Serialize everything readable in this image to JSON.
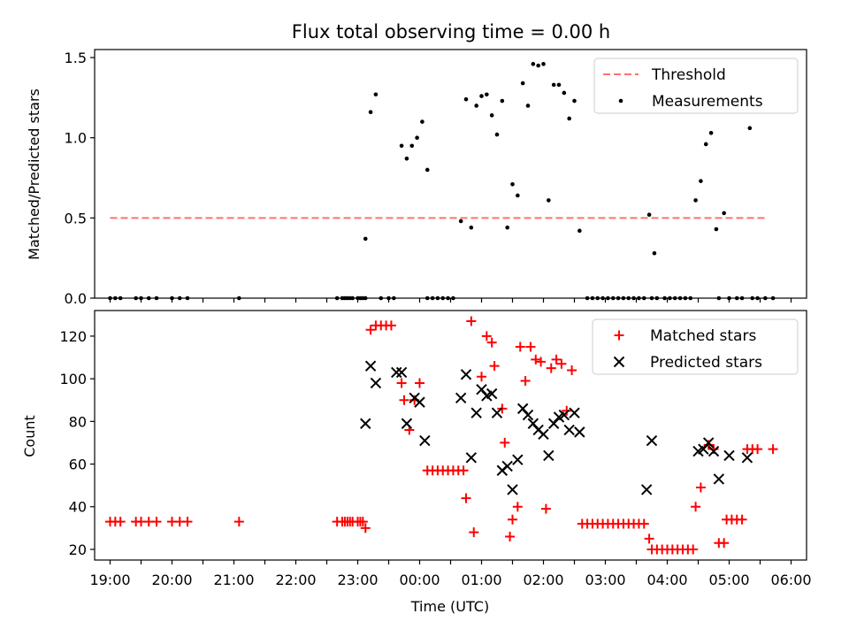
{
  "figure": {
    "title": "Flux total observing time = 0.00 h"
  },
  "chart_data": [
    {
      "type": "scatter",
      "panel": "top",
      "ylabel": "Matched/Predicted stars",
      "xlabel": "",
      "xlim_minutes": [
        -30,
        1350
      ],
      "ylim": [
        0,
        1.55
      ],
      "yticks": [
        0.0,
        0.5,
        1.0,
        1.5
      ],
      "ytick_labels": [
        "0.0",
        "0.5",
        "1.0",
        "1.5"
      ],
      "legend_position": "top-right",
      "threshold": {
        "name": "Threshold",
        "y": 0.5,
        "x_start_minutes": 0,
        "x_end_minutes": 1275,
        "color": "#ff7070"
      },
      "series": [
        {
          "name": "Measurements",
          "color": "#000000",
          "points": [
            [
              0,
              0
            ],
            [
              10,
              0
            ],
            [
              20,
              0
            ],
            [
              50,
              0
            ],
            [
              60,
              0
            ],
            [
              75,
              0
            ],
            [
              90,
              0
            ],
            [
              120,
              0
            ],
            [
              135,
              0
            ],
            [
              150,
              0
            ],
            [
              250,
              0
            ],
            [
              440,
              0
            ],
            [
              450,
              0
            ],
            [
              455,
              0
            ],
            [
              460,
              0
            ],
            [
              465,
              0
            ],
            [
              470,
              0
            ],
            [
              480,
              0
            ],
            [
              485,
              0
            ],
            [
              490,
              0
            ],
            [
              495,
              0
            ],
            [
              495,
              0.37
            ],
            [
              505,
              1.16
            ],
            [
              515,
              1.27
            ],
            [
              525,
              0
            ],
            [
              540,
              0
            ],
            [
              550,
              0
            ],
            [
              565,
              0.95
            ],
            [
              575,
              0.87
            ],
            [
              585,
              0.95
            ],
            [
              595,
              1.0
            ],
            [
              605,
              1.1
            ],
            [
              615,
              0.8
            ],
            [
              615,
              0
            ],
            [
              625,
              0
            ],
            [
              635,
              0
            ],
            [
              645,
              0
            ],
            [
              655,
              0
            ],
            [
              665,
              0
            ],
            [
              680,
              0.48
            ],
            [
              690,
              1.24
            ],
            [
              700,
              0.44
            ],
            [
              710,
              1.2
            ],
            [
              720,
              1.26
            ],
            [
              730,
              1.27
            ],
            [
              740,
              1.14
            ],
            [
              750,
              1.02
            ],
            [
              760,
              1.23
            ],
            [
              770,
              0.44
            ],
            [
              780,
              0.71
            ],
            [
              790,
              0.64
            ],
            [
              800,
              1.34
            ],
            [
              810,
              1.2
            ],
            [
              820,
              1.46
            ],
            [
              830,
              1.45
            ],
            [
              840,
              1.46
            ],
            [
              850,
              0.61
            ],
            [
              860,
              1.33
            ],
            [
              870,
              1.33
            ],
            [
              880,
              1.28
            ],
            [
              890,
              1.12
            ],
            [
              900,
              1.23
            ],
            [
              910,
              0.42
            ],
            [
              925,
              0
            ],
            [
              935,
              0
            ],
            [
              945,
              0
            ],
            [
              955,
              0
            ],
            [
              965,
              0
            ],
            [
              975,
              0
            ],
            [
              985,
              0
            ],
            [
              995,
              0
            ],
            [
              1005,
              0
            ],
            [
              1015,
              0
            ],
            [
              1025,
              0
            ],
            [
              1035,
              0
            ],
            [
              1045,
              0.52
            ],
            [
              1050,
              0
            ],
            [
              1055,
              0.28
            ],
            [
              1060,
              0
            ],
            [
              1075,
              0
            ],
            [
              1085,
              0
            ],
            [
              1095,
              0
            ],
            [
              1105,
              0
            ],
            [
              1115,
              0
            ],
            [
              1125,
              0
            ],
            [
              1135,
              0.61
            ],
            [
              1145,
              0.73
            ],
            [
              1155,
              0.96
            ],
            [
              1165,
              1.03
            ],
            [
              1175,
              0.43
            ],
            [
              1180,
              0
            ],
            [
              1190,
              0.53
            ],
            [
              1200,
              0
            ],
            [
              1215,
              0
            ],
            [
              1225,
              0
            ],
            [
              1240,
              1.06
            ],
            [
              1245,
              0
            ],
            [
              1255,
              0
            ],
            [
              1270,
              0
            ],
            [
              1285,
              0
            ]
          ]
        }
      ]
    },
    {
      "type": "scatter",
      "panel": "bottom",
      "ylabel": "Count",
      "xlabel": "Time (UTC)",
      "xlim_minutes": [
        -30,
        1350
      ],
      "ylim": [
        15,
        132
      ],
      "yticks": [
        20,
        40,
        60,
        80,
        100,
        120
      ],
      "ytick_labels": [
        "20",
        "40",
        "60",
        "80",
        "100",
        "120"
      ],
      "xticks_minutes": [
        0,
        60,
        120,
        180,
        240,
        300,
        360,
        420,
        480,
        540,
        600,
        660,
        720,
        780,
        840,
        900,
        960,
        1020,
        1080,
        1140,
        1200,
        1260,
        1320
      ],
      "xtick_labels": [
        "19:00",
        "20:00",
        "21:00",
        "22:00",
        "23:00",
        "00:00",
        "01:00",
        "02:00",
        "03:00",
        "04:00",
        "05:00",
        "06:00"
      ],
      "xtick_label_every": 2,
      "legend_position": "top-right",
      "series": [
        {
          "name": "Matched stars",
          "marker": "plus",
          "color": "#ff0000",
          "points": [
            [
              0,
              33
            ],
            [
              10,
              33
            ],
            [
              20,
              33
            ],
            [
              50,
              33
            ],
            [
              60,
              33
            ],
            [
              75,
              33
            ],
            [
              90,
              33
            ],
            [
              120,
              33
            ],
            [
              135,
              33
            ],
            [
              150,
              33
            ],
            [
              250,
              33
            ],
            [
              440,
              33
            ],
            [
              450,
              33
            ],
            [
              455,
              33
            ],
            [
              460,
              33
            ],
            [
              465,
              33
            ],
            [
              470,
              33
            ],
            [
              480,
              33
            ],
            [
              485,
              33
            ],
            [
              490,
              33
            ],
            [
              495,
              30
            ],
            [
              505,
              123
            ],
            [
              515,
              125
            ],
            [
              525,
              125
            ],
            [
              535,
              125
            ],
            [
              545,
              125
            ],
            [
              565,
              98
            ],
            [
              570,
              90
            ],
            [
              580,
              76
            ],
            [
              590,
              90
            ],
            [
              600,
              98
            ],
            [
              615,
              57
            ],
            [
              625,
              57
            ],
            [
              635,
              57
            ],
            [
              645,
              57
            ],
            [
              655,
              57
            ],
            [
              665,
              57
            ],
            [
              675,
              57
            ],
            [
              685,
              57
            ],
            [
              690,
              44
            ],
            [
              700,
              127
            ],
            [
              705,
              28
            ],
            [
              720,
              101
            ],
            [
              730,
              120
            ],
            [
              740,
              117
            ],
            [
              745,
              106
            ],
            [
              760,
              86
            ],
            [
              765,
              70
            ],
            [
              775,
              26
            ],
            [
              780,
              34
            ],
            [
              790,
              40
            ],
            [
              795,
              115
            ],
            [
              805,
              99
            ],
            [
              815,
              115
            ],
            [
              825,
              109
            ],
            [
              835,
              108
            ],
            [
              845,
              39
            ],
            [
              855,
              105
            ],
            [
              865,
              109
            ],
            [
              875,
              107
            ],
            [
              885,
              85
            ],
            [
              895,
              104
            ],
            [
              915,
              32
            ],
            [
              925,
              32
            ],
            [
              935,
              32
            ],
            [
              945,
              32
            ],
            [
              955,
              32
            ],
            [
              965,
              32
            ],
            [
              975,
              32
            ],
            [
              985,
              32
            ],
            [
              995,
              32
            ],
            [
              1005,
              32
            ],
            [
              1015,
              32
            ],
            [
              1025,
              32
            ],
            [
              1035,
              32
            ],
            [
              1045,
              25
            ],
            [
              1050,
              20
            ],
            [
              1060,
              20
            ],
            [
              1070,
              20
            ],
            [
              1080,
              20
            ],
            [
              1090,
              20
            ],
            [
              1100,
              20
            ],
            [
              1110,
              20
            ],
            [
              1120,
              20
            ],
            [
              1130,
              20
            ],
            [
              1135,
              40
            ],
            [
              1145,
              49
            ],
            [
              1160,
              69
            ],
            [
              1170,
              67
            ],
            [
              1180,
              23
            ],
            [
              1190,
              23
            ],
            [
              1195,
              34
            ],
            [
              1205,
              34
            ],
            [
              1215,
              34
            ],
            [
              1225,
              34
            ],
            [
              1235,
              67
            ],
            [
              1245,
              67
            ],
            [
              1255,
              67
            ],
            [
              1285,
              67
            ]
          ]
        },
        {
          "name": "Predicted stars",
          "marker": "x",
          "color": "#000000",
          "points": [
            [
              495,
              79
            ],
            [
              505,
              106
            ],
            [
              515,
              98
            ],
            [
              555,
              103
            ],
            [
              565,
              103
            ],
            [
              575,
              79
            ],
            [
              590,
              91
            ],
            [
              600,
              89
            ],
            [
              610,
              71
            ],
            [
              680,
              91
            ],
            [
              690,
              102
            ],
            [
              700,
              63
            ],
            [
              710,
              84
            ],
            [
              720,
              95
            ],
            [
              730,
              92
            ],
            [
              740,
              93
            ],
            [
              750,
              84
            ],
            [
              760,
              57
            ],
            [
              770,
              59
            ],
            [
              780,
              48
            ],
            [
              790,
              62
            ],
            [
              800,
              86
            ],
            [
              810,
              83
            ],
            [
              820,
              79
            ],
            [
              830,
              76
            ],
            [
              840,
              74
            ],
            [
              850,
              64
            ],
            [
              860,
              79
            ],
            [
              870,
              82
            ],
            [
              880,
              83
            ],
            [
              890,
              76
            ],
            [
              900,
              84
            ],
            [
              910,
              75
            ],
            [
              1040,
              48
            ],
            [
              1050,
              71
            ],
            [
              1140,
              66
            ],
            [
              1150,
              67
            ],
            [
              1160,
              70
            ],
            [
              1170,
              66
            ],
            [
              1180,
              53
            ],
            [
              1200,
              64
            ],
            [
              1235,
              63
            ]
          ]
        }
      ]
    }
  ]
}
